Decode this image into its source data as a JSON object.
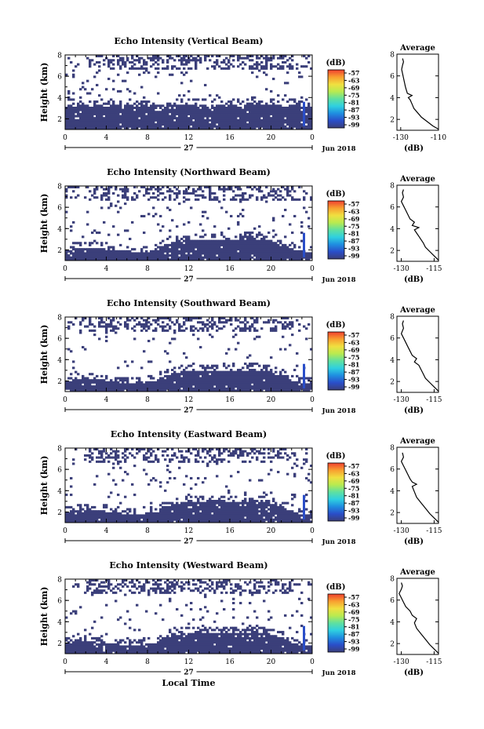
{
  "colors": {
    "background": "#3b3f7a",
    "colorbar": [
      "#3b3f7a",
      "#2a4ec9",
      "#1f8ee0",
      "#2fd0e0",
      "#5fe0a0",
      "#b8ea50",
      "#f0e040",
      "#f8a030",
      "#f04030"
    ]
  },
  "chart_data": [
    {
      "type": "heatmap",
      "title": "Echo Intensity (Vertical Beam)",
      "ylabel": "Height (km)",
      "xlabel": "",
      "x_ticks": [
        "0",
        "4",
        "8",
        "12",
        "16",
        "20",
        "0"
      ],
      "date_label": "27",
      "month_label": "Jun 2018",
      "y_ticks": [
        "2",
        "4",
        "6",
        "8"
      ],
      "xlim": [
        0,
        24
      ],
      "ylim": [
        1,
        8
      ],
      "colorbar": {
        "unit": "(dB)",
        "labels": [
          "-57",
          "-63",
          "-69",
          "-75",
          "-81",
          "-87",
          "-93",
          "-99"
        ]
      },
      "profile": {
        "title": "Average",
        "xlabel": "(dB)",
        "x_ticks": [
          "-130",
          "-110"
        ],
        "xlim": [
          -132,
          -110
        ],
        "y_ticks": [
          "2",
          "4",
          "6",
          "8"
        ],
        "ylim": [
          1,
          8
        ],
        "points": [
          [
            -110,
            1.1
          ],
          [
            -113,
            1.4
          ],
          [
            -116,
            1.8
          ],
          [
            -119,
            2.2
          ],
          [
            -121,
            2.6
          ],
          [
            -123,
            3.0
          ],
          [
            -124,
            3.4
          ],
          [
            -125,
            3.8
          ],
          [
            -126,
            4.0
          ],
          [
            -124,
            4.2
          ],
          [
            -126.5,
            4.4
          ],
          [
            -127,
            4.7
          ],
          [
            -127.5,
            5.0
          ],
          [
            -128,
            5.4
          ],
          [
            -128.5,
            5.8
          ],
          [
            -129,
            6.2
          ],
          [
            -129.5,
            6.6
          ],
          [
            -129,
            7.0
          ],
          [
            -128.5,
            7.3
          ],
          [
            -129,
            7.6
          ]
        ]
      }
    },
    {
      "type": "heatmap",
      "title": "Echo Intensity (Northward Beam)",
      "ylabel": "Height (km)",
      "xlabel": "",
      "x_ticks": [
        "0",
        "4",
        "8",
        "12",
        "16",
        "20",
        "0"
      ],
      "date_label": "27",
      "month_label": "Jun 2018",
      "y_ticks": [
        "2",
        "4",
        "6",
        "8"
      ],
      "xlim": [
        0,
        24
      ],
      "ylim": [
        1,
        8
      ],
      "colorbar": {
        "unit": "(dB)",
        "labels": [
          "-57",
          "-63",
          "-69",
          "-75",
          "-81",
          "-87",
          "-93",
          "-99"
        ]
      },
      "profile": {
        "title": "Average",
        "xlabel": "(dB)",
        "x_ticks": [
          "-130",
          "-115"
        ],
        "xlim": [
          -132,
          -113
        ],
        "y_ticks": [
          "2",
          "4",
          "6",
          "8"
        ],
        "ylim": [
          1,
          8
        ],
        "points": [
          [
            -113,
            1.1
          ],
          [
            -115,
            1.5
          ],
          [
            -117,
            1.9
          ],
          [
            -119,
            2.3
          ],
          [
            -120,
            2.7
          ],
          [
            -121,
            3.0
          ],
          [
            -122,
            3.3
          ],
          [
            -123,
            3.6
          ],
          [
            -124,
            3.9
          ],
          [
            -122,
            4.1
          ],
          [
            -125,
            4.3
          ],
          [
            -124,
            4.6
          ],
          [
            -126,
            4.9
          ],
          [
            -127,
            5.3
          ],
          [
            -128,
            5.7
          ],
          [
            -129,
            6.1
          ],
          [
            -130,
            6.5
          ],
          [
            -129,
            6.9
          ],
          [
            -129.5,
            7.3
          ],
          [
            -129,
            7.6
          ]
        ]
      }
    },
    {
      "type": "heatmap",
      "title": "Echo Intensity (Southward Beam)",
      "ylabel": "Height (km)",
      "xlabel": "",
      "x_ticks": [
        "0",
        "4",
        "8",
        "12",
        "16",
        "20",
        "0"
      ],
      "date_label": "27",
      "month_label": "Jun 2018",
      "y_ticks": [
        "2",
        "4",
        "6",
        "8"
      ],
      "xlim": [
        0,
        24
      ],
      "ylim": [
        1,
        8
      ],
      "colorbar": {
        "unit": "(dB)",
        "labels": [
          "-57",
          "-63",
          "-69",
          "-75",
          "-81",
          "-87",
          "-93",
          "-99"
        ]
      },
      "profile": {
        "title": "Average",
        "xlabel": "(dB)",
        "x_ticks": [
          "-130",
          "-115"
        ],
        "xlim": [
          -132,
          -113
        ],
        "y_ticks": [
          "2",
          "4",
          "6",
          "8"
        ],
        "ylim": [
          1,
          8
        ],
        "points": [
          [
            -113,
            1.1
          ],
          [
            -115,
            1.5
          ],
          [
            -117,
            1.9
          ],
          [
            -119,
            2.3
          ],
          [
            -120,
            2.7
          ],
          [
            -121,
            3.1
          ],
          [
            -122,
            3.5
          ],
          [
            -124,
            3.8
          ],
          [
            -123,
            4.1
          ],
          [
            -125,
            4.4
          ],
          [
            -126,
            4.8
          ],
          [
            -127,
            5.2
          ],
          [
            -128,
            5.6
          ],
          [
            -129,
            6.0
          ],
          [
            -130,
            6.4
          ],
          [
            -129,
            6.9
          ],
          [
            -129.5,
            7.3
          ],
          [
            -129,
            7.6
          ]
        ]
      }
    },
    {
      "type": "heatmap",
      "title": "Echo Intensity (Eastward Beam)",
      "ylabel": "Height (km)",
      "xlabel": "",
      "x_ticks": [
        "0",
        "4",
        "8",
        "12",
        "16",
        "20",
        "0"
      ],
      "date_label": "27",
      "month_label": "Jun 2018",
      "y_ticks": [
        "2",
        "4",
        "6",
        "8"
      ],
      "xlim": [
        0,
        24
      ],
      "ylim": [
        1,
        8
      ],
      "colorbar": {
        "unit": "(dB)",
        "labels": [
          "-57",
          "-63",
          "-69",
          "-75",
          "-81",
          "-87",
          "-93",
          "-99"
        ]
      },
      "profile": {
        "title": "Average",
        "xlabel": "(dB)",
        "x_ticks": [
          "-130",
          "-115"
        ],
        "xlim": [
          -132,
          -113
        ],
        "y_ticks": [
          "2",
          "4",
          "6",
          "8"
        ],
        "ylim": [
          1,
          8
        ],
        "points": [
          [
            -113,
            1.1
          ],
          [
            -115,
            1.5
          ],
          [
            -117,
            1.9
          ],
          [
            -119,
            2.4
          ],
          [
            -121,
            2.9
          ],
          [
            -123,
            3.4
          ],
          [
            -124,
            3.9
          ],
          [
            -125,
            4.4
          ],
          [
            -123,
            4.6
          ],
          [
            -125,
            4.8
          ],
          [
            -126,
            5.1
          ],
          [
            -127,
            5.5
          ],
          [
            -128,
            5.9
          ],
          [
            -129,
            6.3
          ],
          [
            -130,
            6.7
          ],
          [
            -129,
            7.1
          ],
          [
            -129.5,
            7.5
          ]
        ]
      }
    },
    {
      "type": "heatmap",
      "title": "Echo Intensity (Westward Beam)",
      "ylabel": "Height (km)",
      "xlabel": "Local Time",
      "x_ticks": [
        "0",
        "4",
        "8",
        "12",
        "16",
        "20",
        "0"
      ],
      "date_label": "27",
      "month_label": "Jun 2018",
      "y_ticks": [
        "2",
        "4",
        "6",
        "8"
      ],
      "xlim": [
        0,
        24
      ],
      "ylim": [
        1,
        8
      ],
      "colorbar": {
        "unit": "(dB)",
        "labels": [
          "-57",
          "-63",
          "-69",
          "-75",
          "-81",
          "-87",
          "-93",
          "-99"
        ]
      },
      "profile": {
        "title": "Average",
        "xlabel": "(dB)",
        "x_ticks": [
          "-130",
          "-115"
        ],
        "xlim": [
          -132,
          -113
        ],
        "y_ticks": [
          "2",
          "4",
          "6",
          "8"
        ],
        "ylim": [
          1,
          8
        ],
        "points": [
          [
            -113,
            1.1
          ],
          [
            -115,
            1.5
          ],
          [
            -117,
            1.9
          ],
          [
            -119,
            2.4
          ],
          [
            -121,
            2.9
          ],
          [
            -123,
            3.4
          ],
          [
            -124,
            3.9
          ],
          [
            -123,
            4.3
          ],
          [
            -125,
            4.6
          ],
          [
            -126,
            5.0
          ],
          [
            -128,
            5.4
          ],
          [
            -129,
            5.8
          ],
          [
            -130,
            6.2
          ],
          [
            -131,
            6.6
          ],
          [
            -130,
            7.0
          ],
          [
            -129.5,
            7.3
          ],
          [
            -130,
            7.6
          ]
        ]
      }
    }
  ]
}
